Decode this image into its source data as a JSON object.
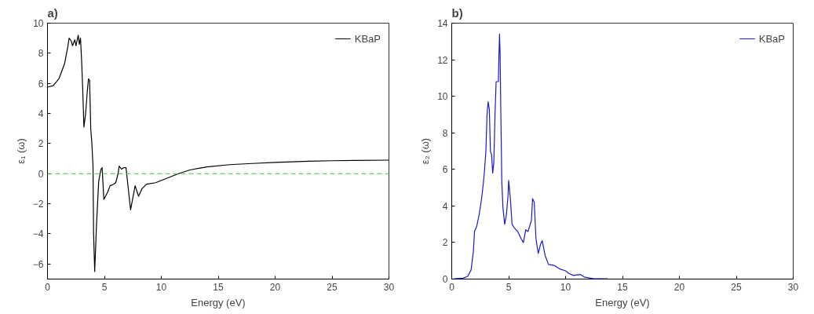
{
  "chart_data": [
    {
      "type": "line",
      "title": "a)",
      "xlabel": "Energy (eV)",
      "ylabel": "ε₁ (ω)",
      "xlim": [
        0,
        30
      ],
      "xticks": [
        0,
        5,
        10,
        15,
        20,
        25,
        30
      ],
      "ylim": [
        -7,
        10
      ],
      "yticks": [
        -6,
        -4,
        -2,
        0,
        2,
        4,
        6,
        8,
        10
      ],
      "grid": false,
      "legend": "top right",
      "marker": "none",
      "line_style": "solid",
      "ref_lines": [
        {
          "axis": "y",
          "value": 0,
          "color": "#33cc33",
          "line_style": "dashed"
        }
      ],
      "series": [
        {
          "name": "KBaP",
          "color": "#000000",
          "x": [
            0,
            0.5,
            1,
            1.5,
            1.8,
            1.9,
            2.1,
            2.2,
            2.4,
            2.5,
            2.7,
            2.8,
            2.9,
            3.0,
            3.1,
            3.2,
            3.35,
            3.5,
            3.6,
            3.7,
            3.8,
            3.9,
            4.0,
            4.05,
            4.15,
            4.3,
            4.5,
            4.7,
            4.8,
            4.95,
            5.1,
            5.3,
            5.5,
            5.8,
            6.0,
            6.2,
            6.3,
            6.5,
            6.7,
            6.9,
            7.1,
            7.3,
            7.6,
            7.7,
            8.0,
            8.3,
            8.7,
            9.5,
            10.5,
            11.5,
            12.5,
            14,
            16,
            18,
            20,
            23,
            25,
            27,
            30
          ],
          "values": [
            5.75,
            5.85,
            6.3,
            7.3,
            8.5,
            9.0,
            8.8,
            8.5,
            8.9,
            8.5,
            9.2,
            8.6,
            9.0,
            7.5,
            5.5,
            3.1,
            4.0,
            5.5,
            6.3,
            6.2,
            3.0,
            2.0,
            0.5,
            -4.0,
            -6.5,
            -3.5,
            -0.5,
            0.3,
            0.4,
            -1.7,
            -1.5,
            -1.2,
            -0.8,
            -0.7,
            -0.6,
            0.0,
            0.5,
            0.3,
            0.4,
            0.4,
            -1.0,
            -2.4,
            -1.2,
            -0.8,
            -1.5,
            -1.0,
            -0.7,
            -0.6,
            -0.3,
            0.0,
            0.25,
            0.45,
            0.6,
            0.68,
            0.75,
            0.83,
            0.86,
            0.88,
            0.9
          ]
        }
      ]
    },
    {
      "type": "line",
      "title": "b)",
      "xlabel": "Energy (eV)",
      "ylabel": "ε₂ (ω)",
      "xlim": [
        0,
        30
      ],
      "xticks": [
        0,
        5,
        10,
        15,
        20,
        25,
        30
      ],
      "ylim": [
        0,
        14
      ],
      "yticks": [
        0,
        2,
        4,
        6,
        8,
        10,
        12,
        14
      ],
      "grid": false,
      "legend": "top right",
      "marker": "none",
      "line_style": "solid",
      "series": [
        {
          "name": "KBaP",
          "color": "#1a1acc",
          "x": [
            0.2,
            1,
            1.4,
            1.7,
            1.9,
            2.0,
            2.2,
            2.4,
            2.6,
            2.7,
            2.85,
            3.0,
            3.1,
            3.2,
            3.3,
            3.4,
            3.5,
            3.6,
            3.7,
            3.8,
            3.9,
            4.0,
            4.1,
            4.15,
            4.2,
            4.25,
            4.3,
            4.4,
            4.5,
            4.65,
            4.8,
            4.95,
            5.0,
            5.15,
            5.3,
            5.5,
            5.8,
            6.1,
            6.3,
            6.5,
            6.7,
            7.0,
            7.1,
            7.25,
            7.4,
            7.6,
            7.8,
            7.95,
            8.2,
            8.5,
            9.0,
            9.5,
            10,
            10.3,
            10.7,
            11.3,
            11.7,
            12.5,
            13.7
          ],
          "values": [
            0.02,
            0.05,
            0.15,
            0.5,
            1.5,
            2.6,
            2.9,
            3.5,
            4.3,
            4.8,
            5.7,
            7.0,
            9.0,
            9.7,
            9.3,
            7.0,
            6.8,
            5.8,
            6.4,
            9.0,
            10.8,
            10.8,
            10.8,
            12.3,
            13.4,
            12.3,
            9.7,
            5.3,
            3.9,
            3.0,
            3.5,
            4.6,
            5.4,
            4.4,
            3.0,
            2.8,
            2.6,
            2.2,
            2.0,
            2.7,
            2.6,
            3.2,
            4.4,
            4.2,
            2.2,
            1.4,
            1.9,
            2.1,
            1.3,
            0.8,
            0.75,
            0.55,
            0.45,
            0.3,
            0.2,
            0.25,
            0.1,
            0.02,
            0.02
          ]
        }
      ]
    }
  ]
}
